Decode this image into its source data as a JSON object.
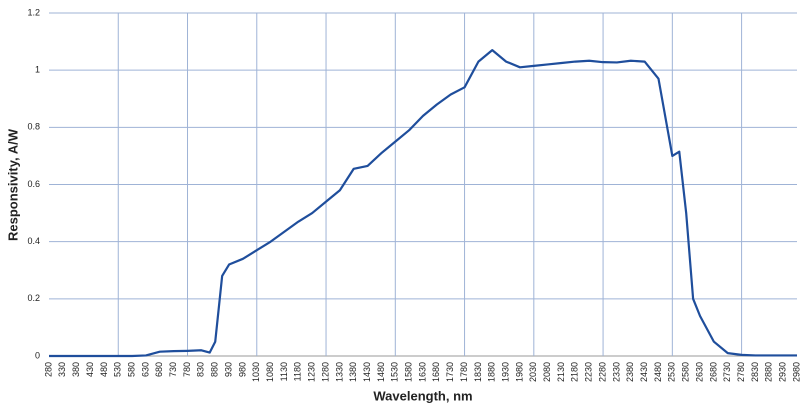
{
  "chart_data": {
    "type": "line",
    "xlabel": "Wavelength, nm",
    "ylabel": "Responsivity, A/W",
    "xlim": [
      280,
      2980
    ],
    "ylim": [
      0,
      1.2
    ],
    "xticks": [
      280,
      330,
      380,
      430,
      480,
      530,
      580,
      630,
      680,
      730,
      780,
      830,
      880,
      930,
      980,
      1030,
      1080,
      1130,
      1180,
      1230,
      1280,
      1330,
      1380,
      1430,
      1480,
      1530,
      1580,
      1630,
      1680,
      1730,
      1780,
      1830,
      1880,
      1930,
      1980,
      2030,
      2080,
      2130,
      2180,
      2230,
      2280,
      2330,
      2380,
      2430,
      2480,
      2530,
      2580,
      2630,
      2680,
      2730,
      2780,
      2830,
      2880,
      2930,
      2980
    ],
    "yticks": [
      0,
      0.2,
      0.4,
      0.6,
      0.8,
      1,
      1.2
    ],
    "grid": true,
    "series": [
      {
        "color": "#1f4e9c",
        "x": [
          280,
          330,
          380,
          430,
          480,
          530,
          580,
          630,
          680,
          730,
          780,
          830,
          860,
          880,
          905,
          930,
          980,
          1030,
          1080,
          1130,
          1180,
          1230,
          1280,
          1330,
          1380,
          1430,
          1480,
          1530,
          1580,
          1630,
          1680,
          1730,
          1780,
          1830,
          1880,
          1930,
          1980,
          2030,
          2080,
          2130,
          2180,
          2230,
          2280,
          2330,
          2380,
          2430,
          2480,
          2530,
          2555,
          2580,
          2605,
          2630,
          2680,
          2730,
          2780,
          2830,
          2880,
          2930,
          2980
        ],
        "values": [
          0,
          0,
          0,
          0,
          0,
          0,
          0,
          0.002,
          0.015,
          0.017,
          0.018,
          0.02,
          0.012,
          0.05,
          0.28,
          0.32,
          0.34,
          0.37,
          0.4,
          0.435,
          0.47,
          0.5,
          0.54,
          0.58,
          0.655,
          0.665,
          0.71,
          0.75,
          0.79,
          0.84,
          0.88,
          0.915,
          0.94,
          1.03,
          1.07,
          1.03,
          1.01,
          1.015,
          1.02,
          1.025,
          1.03,
          1.033,
          1.028,
          1.027,
          1.033,
          1.03,
          0.97,
          0.7,
          0.715,
          0.5,
          0.2,
          0.14,
          0.05,
          0.01,
          0.004,
          0.002,
          0.002,
          0.002,
          0.002
        ]
      }
    ]
  }
}
